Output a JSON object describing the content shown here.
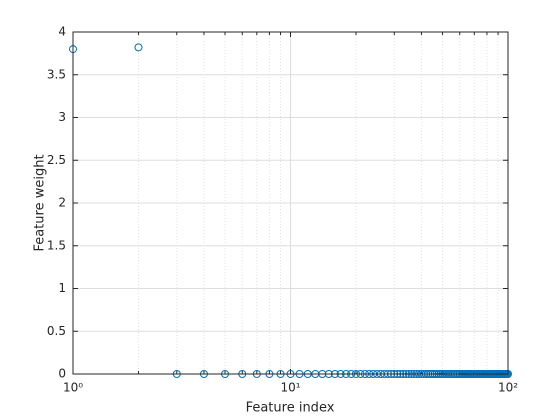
{
  "chart_data": {
    "type": "scatter",
    "x_label": "Feature index",
    "y_label": "Feature weight",
    "x": [
      1,
      2,
      3,
      4,
      5,
      6,
      7,
      8,
      9,
      10,
      11,
      12,
      13,
      14,
      15,
      16,
      17,
      18,
      19,
      20,
      21,
      22,
      23,
      24,
      25,
      26,
      27,
      28,
      29,
      30,
      31,
      32,
      33,
      34,
      35,
      36,
      37,
      38,
      39,
      40,
      41,
      42,
      43,
      44,
      45,
      46,
      47,
      48,
      49,
      50,
      51,
      52,
      53,
      54,
      55,
      56,
      57,
      58,
      59,
      60,
      61,
      62,
      63,
      64,
      65,
      66,
      67,
      68,
      69,
      70,
      71,
      72,
      73,
      74,
      75,
      76,
      77,
      78,
      79,
      80,
      81,
      82,
      83,
      84,
      85,
      86,
      87,
      88,
      89,
      90,
      91,
      92,
      93,
      94,
      95,
      96,
      97,
      98,
      99,
      100
    ],
    "values": [
      3.8,
      3.82,
      0,
      0,
      0,
      0,
      0,
      0,
      0,
      0,
      0,
      0,
      0,
      0,
      0,
      0,
      0,
      0,
      0,
      0,
      0,
      0,
      0,
      0,
      0,
      0,
      0,
      0,
      0,
      0,
      0,
      0,
      0,
      0,
      0,
      0,
      0,
      0,
      0,
      0,
      0,
      0,
      0,
      0,
      0,
      0,
      0,
      0,
      0,
      0,
      0,
      0,
      0,
      0,
      0,
      0,
      0,
      0,
      0,
      0,
      0,
      0,
      0,
      0,
      0,
      0,
      0,
      0,
      0,
      0,
      0,
      0,
      0,
      0,
      0,
      0,
      0,
      0,
      0,
      0,
      0,
      0,
      0,
      0,
      0,
      0,
      0,
      0,
      0,
      0,
      0,
      0,
      0,
      0,
      0,
      0,
      0,
      0,
      0,
      0
    ],
    "color": "#0072bd",
    "x_log": true,
    "xlim": [
      1,
      100
    ],
    "xticks": [
      {
        "value": 1,
        "label": "10⁰"
      },
      {
        "value": 10,
        "label": "10¹"
      },
      {
        "value": 100,
        "label": "10²"
      }
    ],
    "ylim": [
      0,
      4
    ],
    "yticks": [
      0,
      0.5,
      1,
      1.5,
      2,
      2.5,
      3,
      3.5,
      4
    ],
    "grid": true,
    "minor_grid": true
  }
}
